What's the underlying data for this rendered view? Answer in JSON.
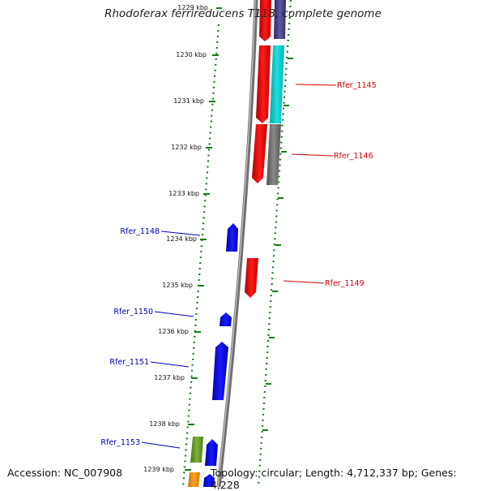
{
  "title": "Rhodoferax ferrireducens T118, complete genome",
  "accession": "Accession: NC_007908",
  "topology": "Topology: circular; Length: 4,712,337 bp; Genes: 4,228",
  "colors": {
    "forward_label": "#cc0000",
    "reverse_label": "#0000bb",
    "tick": "#1a7a1a",
    "backbone": "#808080"
  },
  "ticks": [
    {
      "label": "1229 kbp"
    },
    {
      "label": "1230 kbp"
    },
    {
      "label": "1231 kbp"
    },
    {
      "label": "1232 kbp"
    },
    {
      "label": "1233 kbp"
    },
    {
      "label": "1234 kbp"
    },
    {
      "label": "1235 kbp"
    },
    {
      "label": "1236 kbp"
    },
    {
      "label": "1237 kbp"
    },
    {
      "label": "1238 kbp"
    },
    {
      "label": "1239 kbp"
    }
  ],
  "gene_labels": [
    {
      "text": "Rfer_1145",
      "strand": "forward"
    },
    {
      "text": "Rfer_1146",
      "strand": "forward"
    },
    {
      "text": "Rfer_1148",
      "strand": "reverse"
    },
    {
      "text": "Rfer_1149",
      "strand": "forward"
    },
    {
      "text": "Rfer_1150",
      "strand": "reverse"
    },
    {
      "text": "Rfer_1151",
      "strand": "reverse"
    },
    {
      "text": "Rfer_1153",
      "strand": "reverse"
    }
  ]
}
